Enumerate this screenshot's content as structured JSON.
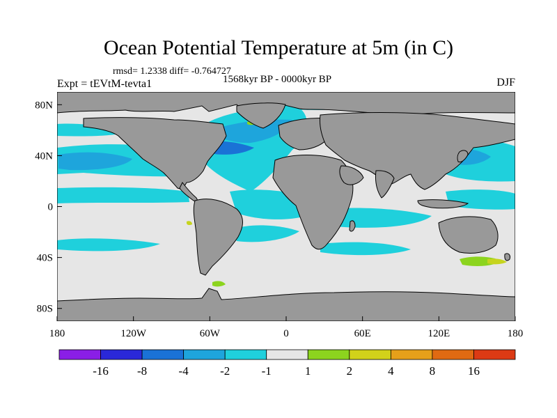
{
  "title": "Ocean Potential Temperature at 5m (in C)",
  "stats_line": "rmsd= 1.2338 diff= -0.764727",
  "experiment_label": "Expt = tEVtM-tevta1",
  "period_label": "1568kyr BP - 0000kyr BP",
  "season_label": "DJF",
  "map": {
    "lat_range": [
      -90,
      90
    ],
    "lon_range": [
      -180,
      180
    ],
    "lat_ticks": [
      {
        "value": 80,
        "label": "80N"
      },
      {
        "value": 40,
        "label": "40N"
      },
      {
        "value": 0,
        "label": "0"
      },
      {
        "value": -40,
        "label": "40S"
      },
      {
        "value": -80,
        "label": "80S"
      }
    ],
    "lon_ticks": [
      {
        "value": -180,
        "label": "180"
      },
      {
        "value": -120,
        "label": "120W"
      },
      {
        "value": -60,
        "label": "60W"
      },
      {
        "value": 0,
        "label": "0"
      },
      {
        "value": 60,
        "label": "60E"
      },
      {
        "value": 120,
        "label": "120E"
      },
      {
        "value": 180,
        "label": "180"
      }
    ],
    "colors": {
      "ocean_neutral": "#e6e6e6",
      "land": "#999999",
      "cool": "#1fd0dc",
      "cooler": "#1ea5dc",
      "coolest": "#1a72d6",
      "warm": "#8cd41e",
      "warmer": "#c6d41e"
    }
  },
  "colorbar": {
    "colors": [
      "#8a1ee6",
      "#2a28d8",
      "#1a72d6",
      "#1ea5dc",
      "#1fd0dc",
      "#e6e6e6",
      "#8cd41e",
      "#d2d21a",
      "#e6a01a",
      "#e06a12",
      "#dc3a14"
    ],
    "labels": [
      "-16",
      "-8",
      "-4",
      "-2",
      "-1",
      "1",
      "2",
      "4",
      "8",
      "16"
    ]
  }
}
